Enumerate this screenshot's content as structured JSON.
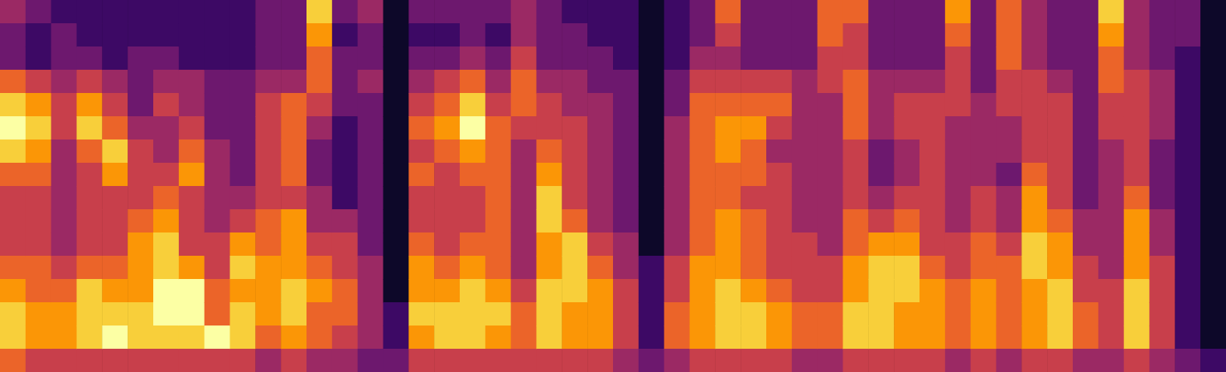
{
  "chart_data": {
    "type": "heatmap",
    "tick_labels": false,
    "cells": [
      [
        4,
        3,
        3,
        6,
        8,
        9,
        8,
        6,
        5,
        5,
        5,
        6,
        7,
        8,
        8,
        6
      ],
      [
        3,
        2,
        2,
        5,
        7,
        8,
        7,
        6,
        5,
        5,
        5,
        6,
        6,
        7,
        7,
        5
      ],
      [
        2,
        3,
        3,
        4,
        5,
        5,
        4,
        4,
        4,
        4,
        4,
        5,
        6,
        7,
        7,
        5
      ],
      [
        2,
        2,
        3,
        5,
        7,
        8,
        6,
        5,
        5,
        5,
        5,
        6,
        8,
        8,
        8,
        5
      ],
      [
        2,
        2,
        2,
        4,
        5,
        6,
        8,
        7,
        5,
        5,
        5,
        6,
        7,
        8,
        9,
        5
      ],
      [
        2,
        2,
        3,
        3,
        3,
        4,
        5,
        5,
        5,
        6,
        7,
        7,
        7,
        8,
        8,
        5
      ],
      [
        2,
        2,
        3,
        4,
        5,
        4,
        4,
        5,
        6,
        7,
        8,
        8,
        9,
        9,
        8,
        5
      ],
      [
        2,
        2,
        2,
        4,
        4,
        5,
        6,
        7,
        5,
        5,
        5,
        7,
        9,
        9,
        8,
        5
      ],
      [
        2,
        2,
        2,
        3,
        3,
        3,
        4,
        4,
        4,
        4,
        5,
        5,
        6,
        6,
        9,
        5
      ],
      [
        2,
        2,
        2,
        3,
        3,
        3,
        3,
        3,
        4,
        5,
        7,
        8,
        7,
        8,
        8,
        5
      ],
      [
        3,
        3,
        3,
        4,
        5,
        5,
        5,
        5,
        5,
        6,
        6,
        7,
        7,
        7,
        6,
        4
      ],
      [
        3,
        3,
        3,
        4,
        6,
        6,
        6,
        6,
        5,
        7,
        7,
        7,
        8,
        8,
        7,
        5
      ],
      [
        8,
        7,
        6,
        6,
        5,
        4,
        3,
        3,
        4,
        4,
        5,
        6,
        7,
        6,
        6,
        4
      ],
      [
        3,
        2,
        3,
        3,
        3,
        2,
        2,
        2,
        2,
        4,
        5,
        5,
        6,
        6,
        5,
        4
      ],
      [
        4,
        3,
        3,
        4,
        3,
        3,
        3,
        3,
        3,
        3,
        3,
        4,
        4,
        4,
        4,
        3
      ],
      [
        1,
        1,
        1,
        1,
        1,
        1,
        1,
        1,
        1,
        1,
        1,
        1,
        1,
        2,
        2,
        3
      ],
      [
        3,
        2,
        3,
        4,
        5,
        6,
        5,
        6,
        5,
        5,
        6,
        7,
        7,
        8,
        7,
        5
      ],
      [
        3,
        2,
        3,
        5,
        6,
        7,
        6,
        5,
        5,
        5,
        5,
        6,
        7,
        8,
        8,
        5
      ],
      [
        3,
        3,
        4,
        6,
        8,
        9,
        7,
        6,
        5,
        5,
        6,
        7,
        8,
        8,
        8,
        5
      ],
      [
        3,
        2,
        3,
        4,
        5,
        6,
        6,
        6,
        6,
        6,
        6,
        6,
        7,
        8,
        7,
        5
      ],
      [
        4,
        4,
        5,
        6,
        6,
        5,
        4,
        4,
        4,
        4,
        4,
        4,
        5,
        6,
        6,
        5
      ],
      [
        3,
        3,
        3,
        4,
        5,
        5,
        6,
        7,
        8,
        8,
        7,
        7,
        8,
        8,
        8,
        5
      ],
      [
        2,
        3,
        3,
        4,
        4,
        5,
        5,
        5,
        5,
        6,
        8,
        8,
        8,
        7,
        7,
        5
      ],
      [
        2,
        2,
        3,
        3,
        4,
        4,
        4,
        4,
        4,
        4,
        5,
        6,
        7,
        7,
        7,
        5
      ],
      [
        2,
        2,
        2,
        3,
        3,
        3,
        3,
        3,
        3,
        3,
        4,
        4,
        5,
        5,
        5,
        4
      ],
      [
        1,
        1,
        1,
        1,
        1,
        1,
        1,
        1,
        1,
        1,
        1,
        2,
        2,
        2,
        2,
        3
      ],
      [
        2,
        2,
        2,
        3,
        3,
        4,
        4,
        4,
        4,
        4,
        4,
        5,
        5,
        6,
        6,
        4
      ],
      [
        3,
        3,
        4,
        5,
        6,
        6,
        6,
        6,
        6,
        6,
        6,
        7,
        7,
        7,
        7,
        5
      ],
      [
        6,
        5,
        4,
        5,
        6,
        7,
        7,
        6,
        6,
        7,
        7,
        7,
        8,
        8,
        8,
        5
      ],
      [
        3,
        3,
        3,
        5,
        6,
        7,
        6,
        6,
        5,
        6,
        6,
        6,
        7,
        8,
        8,
        5
      ],
      [
        3,
        3,
        3,
        5,
        6,
        5,
        4,
        5,
        5,
        5,
        5,
        5,
        6,
        7,
        7,
        5
      ],
      [
        3,
        3,
        3,
        4,
        4,
        4,
        4,
        4,
        4,
        4,
        5,
        5,
        5,
        6,
        6,
        4
      ],
      [
        6,
        6,
        5,
        5,
        4,
        4,
        4,
        4,
        4,
        4,
        4,
        5,
        5,
        6,
        6,
        4
      ],
      [
        6,
        5,
        5,
        6,
        6,
        6,
        5,
        5,
        5,
        6,
        6,
        7,
        7,
        8,
        8,
        5
      ],
      [
        3,
        3,
        3,
        4,
        4,
        4,
        3,
        3,
        4,
        5,
        7,
        8,
        8,
        8,
        8,
        5
      ],
      [
        3,
        3,
        3,
        4,
        5,
        5,
        4,
        4,
        5,
        6,
        7,
        8,
        8,
        7,
        7,
        5
      ],
      [
        3,
        3,
        3,
        4,
        5,
        5,
        5,
        5,
        5,
        5,
        5,
        6,
        7,
        7,
        7,
        5
      ],
      [
        7,
        6,
        5,
        5,
        5,
        4,
        4,
        4,
        4,
        4,
        5,
        5,
        6,
        6,
        6,
        4
      ],
      [
        3,
        3,
        3,
        3,
        4,
        4,
        4,
        4,
        5,
        5,
        6,
        6,
        7,
        7,
        7,
        5
      ],
      [
        6,
        6,
        6,
        5,
        5,
        4,
        4,
        3,
        4,
        4,
        5,
        6,
        6,
        6,
        6,
        4
      ],
      [
        4,
        4,
        4,
        5,
        5,
        5,
        5,
        6,
        7,
        7,
        8,
        8,
        7,
        7,
        7,
        5
      ],
      [
        3,
        3,
        3,
        4,
        5,
        5,
        5,
        5,
        5,
        6,
        7,
        7,
        8,
        8,
        8,
        5
      ],
      [
        3,
        3,
        3,
        3,
        3,
        3,
        3,
        3,
        3,
        4,
        4,
        5,
        5,
        6,
        6,
        4
      ],
      [
        8,
        7,
        6,
        6,
        5,
        5,
        4,
        4,
        4,
        4,
        4,
        4,
        5,
        5,
        5,
        4
      ],
      [
        4,
        4,
        4,
        5,
        5,
        5,
        5,
        5,
        6,
        7,
        7,
        7,
        8,
        8,
        8,
        5
      ],
      [
        3,
        3,
        3,
        4,
        4,
        4,
        3,
        3,
        3,
        4,
        4,
        5,
        5,
        5,
        5,
        4
      ],
      [
        3,
        3,
        2,
        2,
        2,
        2,
        2,
        2,
        2,
        2,
        2,
        2,
        2,
        2,
        2,
        3
      ],
      [
        1,
        1,
        1,
        1,
        1,
        1,
        1,
        1,
        1,
        1,
        1,
        1,
        1,
        1,
        1,
        2
      ]
    ]
  }
}
